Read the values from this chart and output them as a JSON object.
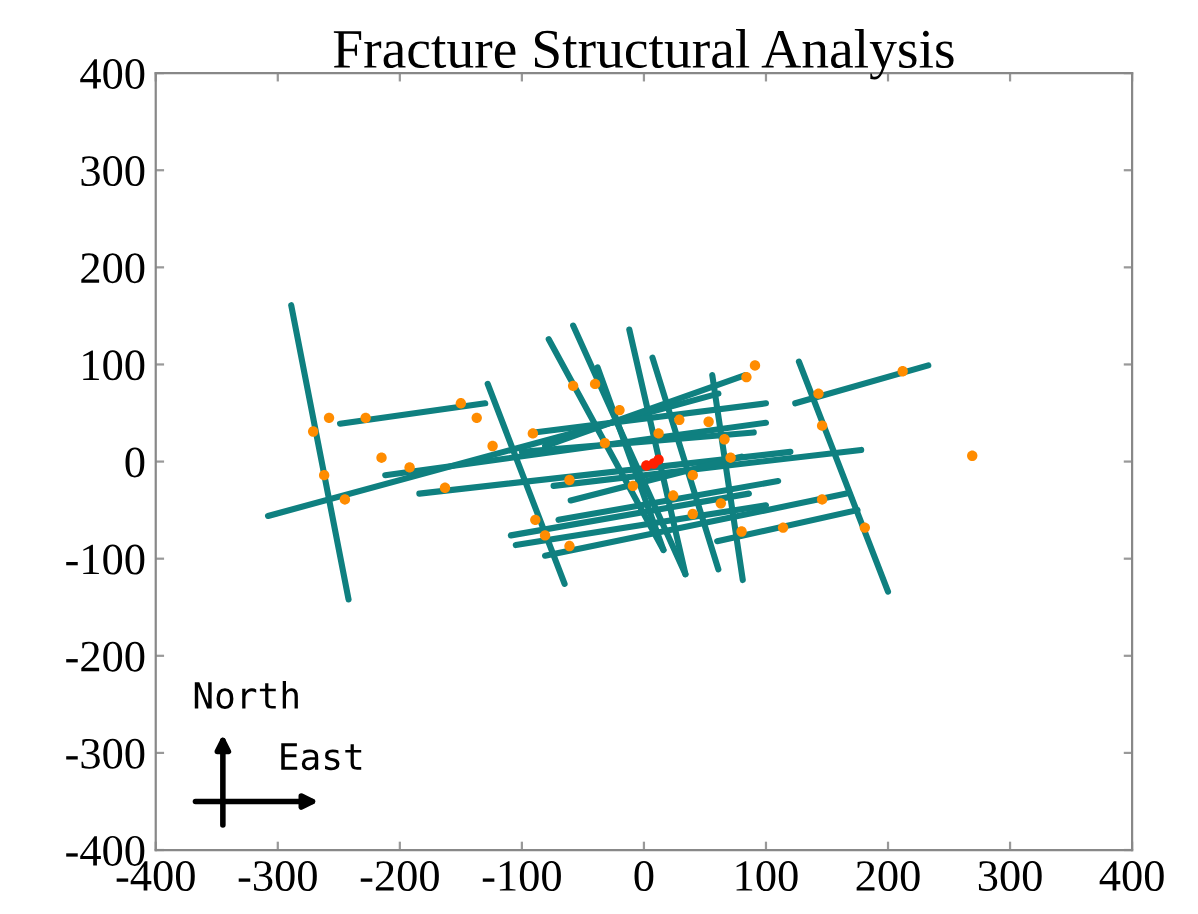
{
  "chart_data": {
    "type": "line",
    "title": "Fracture Structural Analysis",
    "xlim": [
      -400,
      400
    ],
    "ylim": [
      -400,
      400
    ],
    "xticks": [
      -400,
      -300,
      -200,
      -100,
      0,
      100,
      200,
      300,
      400
    ],
    "yticks": [
      -400,
      -300,
      -200,
      -100,
      0,
      100,
      200,
      300,
      400
    ],
    "grid": false,
    "line_style": "solid",
    "annotations": [
      "North",
      "East"
    ],
    "series": [
      {
        "color": "#0f8080",
        "x": [
          -289,
          -242
        ],
        "values": [
          161,
          -142
        ]
      },
      {
        "color": "#0f8080",
        "x": [
          -249,
          -130
        ],
        "values": [
          39,
          60
        ]
      },
      {
        "color": "#0f8080",
        "x": [
          -308,
          61
        ],
        "values": [
          -56,
          70
        ]
      },
      {
        "color": "#0f8080",
        "x": [
          -212,
          100
        ],
        "values": [
          -14,
          40
        ]
      },
      {
        "color": "#0f8080",
        "x": [
          -184,
          120
        ],
        "values": [
          -33,
          10
        ]
      },
      {
        "color": "#0f8080",
        "x": [
          -128,
          -65
        ],
        "values": [
          80,
          -126
        ]
      },
      {
        "color": "#0f8080",
        "x": [
          -109,
          86
        ],
        "values": [
          -76,
          -33
        ]
      },
      {
        "color": "#0f8080",
        "x": [
          -105,
          100
        ],
        "values": [
          -86,
          -45
        ]
      },
      {
        "color": "#0f8080",
        "x": [
          -81,
          166
        ],
        "values": [
          -97,
          -33
        ]
      },
      {
        "color": "#0f8080",
        "x": [
          60,
          175
        ],
        "values": [
          -82,
          -50
        ]
      },
      {
        "color": "#0f8080",
        "x": [
          -78,
          16
        ],
        "values": [
          126,
          -91
        ]
      },
      {
        "color": "#0f8080",
        "x": [
          -58,
          34
        ],
        "values": [
          140,
          -116
        ]
      },
      {
        "color": "#0f8080",
        "x": [
          -12,
          34
        ],
        "values": [
          136,
          -116
        ]
      },
      {
        "color": "#0f8080",
        "x": [
          -38,
          16
        ],
        "values": [
          97,
          -91
        ]
      },
      {
        "color": "#0f8080",
        "x": [
          7,
          61
        ],
        "values": [
          107,
          -111
        ]
      },
      {
        "color": "#0f8080",
        "x": [
          56,
          81
        ],
        "values": [
          89,
          -122
        ]
      },
      {
        "color": "#0f8080",
        "x": [
          127,
          200
        ],
        "values": [
          103,
          -134
        ]
      },
      {
        "color": "#0f8080",
        "x": [
          124,
          233
        ],
        "values": [
          60,
          99
        ]
      },
      {
        "color": "#0f8080",
        "x": [
          -74,
          178
        ],
        "values": [
          -25,
          12
        ]
      },
      {
        "color": "#0f8080",
        "x": [
          -81,
          83
        ],
        "values": [
          16,
          89
        ]
      },
      {
        "color": "#0f8080",
        "x": [
          -100,
          90
        ],
        "values": [
          10,
          30
        ]
      },
      {
        "color": "#0f8080",
        "x": [
          -60,
          80
        ],
        "values": [
          -40,
          5
        ]
      },
      {
        "color": "#0f8080",
        "x": [
          -90,
          100
        ],
        "values": [
          30,
          60
        ]
      },
      {
        "color": "#0f8080",
        "x": [
          -70,
          110
        ],
        "values": [
          -60,
          -20
        ]
      },
      {
        "type": "scatter",
        "color": "#ff8c00",
        "x": [
          -258,
          -271,
          -262,
          -245,
          -215,
          -228,
          -150,
          -137,
          -192,
          -163,
          -124,
          -89,
          -81,
          -61,
          -58,
          -40,
          91,
          84,
          212,
          269,
          71,
          63,
          146,
          143,
          181,
          114,
          146,
          80,
          40,
          -20,
          53,
          29,
          12,
          -32,
          -91,
          -61,
          -9,
          24,
          40,
          66
        ],
        "values": [
          45,
          31,
          -14,
          -39,
          4,
          45,
          60,
          45,
          -6,
          -27,
          16,
          -60,
          -76,
          -87,
          78,
          80,
          99,
          87,
          93,
          6,
          4,
          -43,
          37,
          70,
          -68,
          -68,
          -39,
          -72,
          -54,
          53,
          41,
          43,
          29,
          19,
          29,
          -19,
          -25,
          -35,
          -14,
          23
        ]
      },
      {
        "type": "scatter",
        "color": "#ff2000",
        "x": [
          8,
          2,
          12
        ],
        "values": [
          -2,
          -4,
          2
        ]
      }
    ]
  }
}
